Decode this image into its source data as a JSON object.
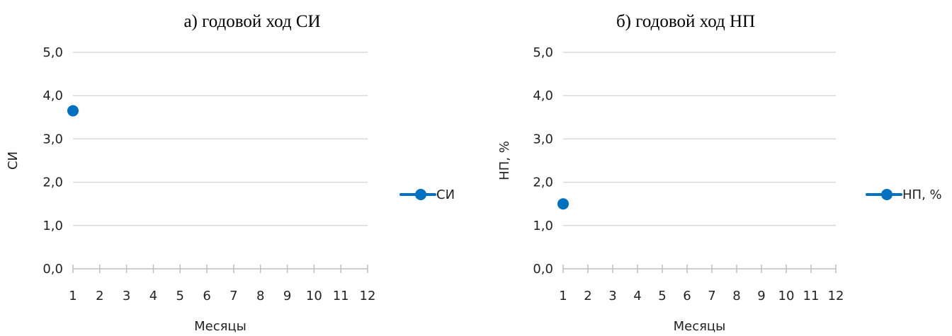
{
  "chart_data": [
    {
      "type": "line",
      "title": "а) годовой ход СИ",
      "xlabel": "Месяцы",
      "ylabel": "СИ",
      "categories": [
        "1",
        "2",
        "3",
        "4",
        "5",
        "6",
        "7",
        "8",
        "9",
        "10",
        "11",
        "12"
      ],
      "yticks": [
        "0,0",
        "1,0",
        "2,0",
        "3,0",
        "4,0",
        "5,0"
      ],
      "ylim": [
        0,
        5
      ],
      "grid": true,
      "legend_position": "right",
      "series": [
        {
          "name": "СИ",
          "color": "#0070C0",
          "values": [
            3.65,
            null,
            null,
            null,
            null,
            null,
            null,
            null,
            null,
            null,
            null,
            null
          ]
        }
      ]
    },
    {
      "type": "line",
      "title": "б) годовой ход НП",
      "xlabel": "Месяцы",
      "ylabel": "НП, %",
      "categories": [
        "1",
        "2",
        "3",
        "4",
        "5",
        "6",
        "7",
        "8",
        "9",
        "10",
        "11",
        "12"
      ],
      "yticks": [
        "0,0",
        "1,0",
        "2,0",
        "3,0",
        "4,0",
        "5,0"
      ],
      "ylim": [
        0,
        5
      ],
      "grid": true,
      "legend_position": "right",
      "series": [
        {
          "name": "НП, %",
          "color": "#0070C0",
          "values": [
            1.5,
            null,
            null,
            null,
            null,
            null,
            null,
            null,
            null,
            null,
            null,
            null
          ]
        }
      ]
    }
  ]
}
